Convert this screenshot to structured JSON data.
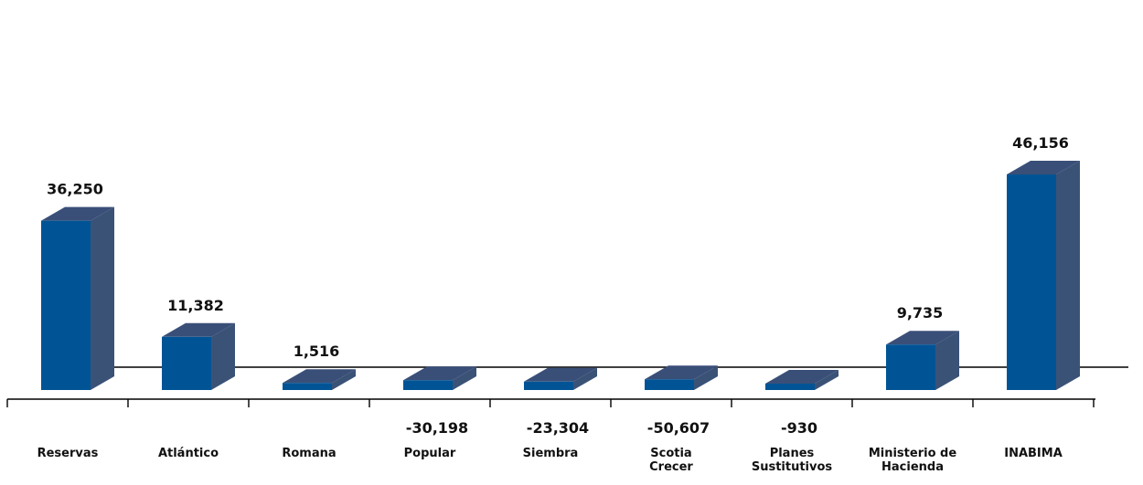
{
  "chart_data": {
    "type": "bar",
    "categories": [
      "Reservas",
      "Atlántico",
      "Romana",
      "Popular",
      "Siembra",
      "Scotia Crecer",
      "Planes Sustitutivos",
      "Ministerio de Hacienda",
      "INABIMA"
    ],
    "category_lines": [
      [
        "Reservas"
      ],
      [
        "Atlántico"
      ],
      [
        "Romana"
      ],
      [
        "Popular"
      ],
      [
        "Siembra"
      ],
      [
        "Scotia",
        "Crecer"
      ],
      [
        "Planes",
        "Sustitutivos"
      ],
      [
        "Ministerio de",
        "Hacienda"
      ],
      [
        "INABIMA"
      ]
    ],
    "values": [
      36250,
      11382,
      1516,
      -30198,
      -23304,
      -50607,
      -930,
      9735,
      46156
    ],
    "value_labels": [
      "36,250",
      "11,382",
      "1,516",
      "-30,198",
      "-23,304",
      "-50,607",
      "-930",
      "9,735",
      "46,156"
    ],
    "render_heights": [
      36250,
      11382,
      1516,
      2100,
      1800,
      2300,
      1200,
      9735,
      46156
    ],
    "title": "",
    "xlabel": "",
    "ylabel": "",
    "grid": false,
    "legend": "none",
    "style": "3d-bar",
    "colors": {
      "front": "#005495",
      "top": "#3a4f78",
      "side": "#3b5277"
    }
  }
}
